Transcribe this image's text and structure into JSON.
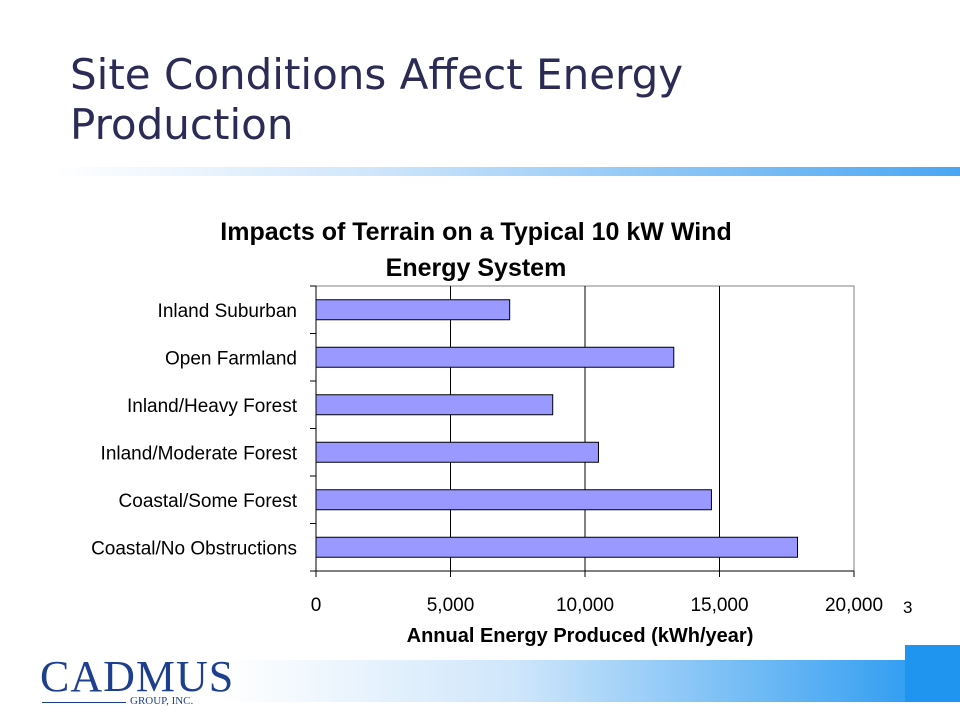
{
  "slide": {
    "title": "Site Conditions Affect Energy Production",
    "page_number": "3"
  },
  "logo": {
    "name": "CADMUS",
    "subtitle": "GROUP, INC."
  },
  "colors": {
    "bar_fill": "#9999ff",
    "title_text": "#2b2b55",
    "accent_blue": "#1f95f0",
    "logo_blue": "#1d3f8f"
  },
  "chart_data": {
    "type": "bar",
    "orientation": "horizontal",
    "title": "Impacts of Terrain on a Typical 10 kW Wind Energy System",
    "xlabel": "Annual Energy Produced (kWh/year)",
    "ylabel": "",
    "categories": [
      "Inland Suburban",
      "Open Farmland",
      "Inland/Heavy Forest",
      "Inland/Moderate Forest",
      "Coastal/Some Forest",
      "Coastal/No Obstructions"
    ],
    "values": [
      7200,
      13300,
      8800,
      10500,
      14700,
      17900
    ],
    "xlim": [
      0,
      20000
    ],
    "xticks": [
      0,
      5000,
      10000,
      15000,
      20000
    ],
    "xtick_labels": [
      "0",
      "5,000",
      "10,000",
      "15,000",
      "20,000"
    ],
    "grid": "vertical",
    "legend": "none"
  }
}
